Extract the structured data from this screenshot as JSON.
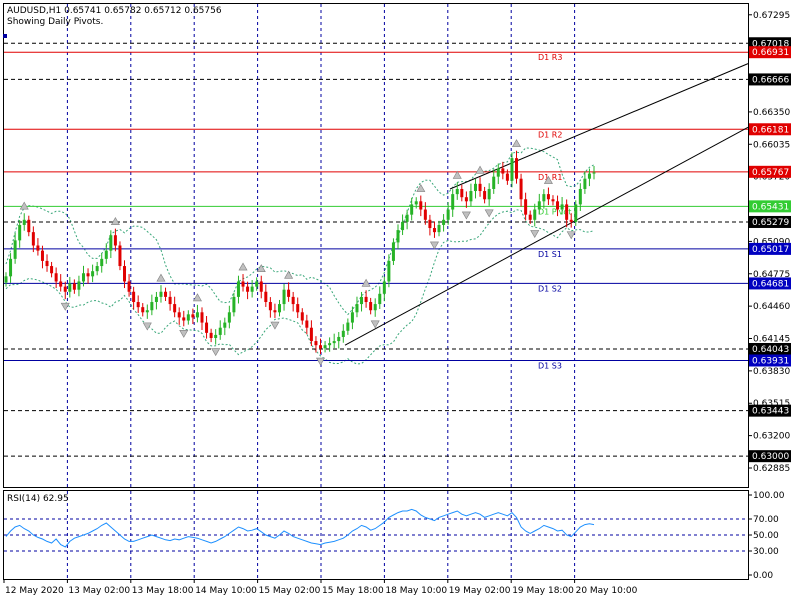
{
  "header": {
    "symbol_line": "AUDUSD,H1  0.65741 0.65782 0.65712 0.65756",
    "pivots_note": "Showing Daily Pivots."
  },
  "colors": {
    "bull": "#27b327",
    "bear": "#e00000",
    "pivot_resist": "#e00000",
    "pivot_support": "#0000a0",
    "pivot": "#33cc33",
    "bands": "#3aa77a",
    "rsi_line": "#1e90ff",
    "grid": "#0000a0",
    "axis_text": "#000000"
  },
  "price_axis": {
    "ticks": [
      "0.67295",
      "0.66350",
      "0.66035",
      "0.65720",
      "0.65405",
      "0.65090",
      "0.64775",
      "0.64460",
      "0.64145",
      "0.63830",
      "0.63515",
      "0.63200",
      "0.62885"
    ]
  },
  "price_labels": [
    {
      "text": "0.67018",
      "price": 0.67018,
      "style": "black"
    },
    {
      "text": "0.66931",
      "price": 0.66931,
      "style": "red"
    },
    {
      "text": "0.66666",
      "price": 0.66666,
      "style": "black"
    },
    {
      "text": "0.66181",
      "price": 0.66181,
      "style": "red"
    },
    {
      "text": "0.65767",
      "price": 0.65767,
      "style": "red"
    },
    {
      "text": "0.65431",
      "price": 0.65431,
      "style": "green"
    },
    {
      "text": "0.65279",
      "price": 0.65279,
      "style": "black"
    },
    {
      "text": "0.65017",
      "price": 0.65017,
      "style": "blue"
    },
    {
      "text": "0.64681",
      "price": 0.64681,
      "style": "blue"
    },
    {
      "text": "0.64043",
      "price": 0.64043,
      "style": "black"
    },
    {
      "text": "0.63931",
      "price": 0.63931,
      "style": "blue"
    },
    {
      "text": "0.63443",
      "price": 0.63443,
      "style": "black"
    },
    {
      "text": "0.63000",
      "price": 0.63,
      "style": "black"
    }
  ],
  "pivot_lines": [
    {
      "label": "D1 R3",
      "price": 0.66931,
      "kind": "resist"
    },
    {
      "label": "D1 R2",
      "price": 0.66181,
      "kind": "resist"
    },
    {
      "label": "D1 R1",
      "price": 0.65767,
      "kind": "resist"
    },
    {
      "label": "D1 Pivot",
      "price": 0.65431,
      "kind": "pivot"
    },
    {
      "label": "D1 S1",
      "price": 0.65017,
      "kind": "support"
    },
    {
      "label": "D1 S2",
      "price": 0.64681,
      "kind": "support"
    },
    {
      "label": "D1 S3",
      "price": 0.63931,
      "kind": "support"
    }
  ],
  "dashed_levels": [
    0.67018,
    0.66666,
    0.65279,
    0.64043,
    0.63443,
    0.63
  ],
  "rsi": {
    "label": "RSI(14) 62.95",
    "ticks": [
      "100.00",
      "70.00",
      "50.00",
      "30.00",
      "0.00"
    ]
  },
  "time_axis": {
    "labels": [
      "12 May 2020",
      "13 May 02:00",
      "13 May 18:00",
      "14 May 10:00",
      "15 May 02:00",
      "15 May 18:00",
      "18 May 10:00",
      "19 May 02:00",
      "19 May 18:00",
      "20 May 10:00"
    ]
  },
  "chart_data": {
    "type": "candlestick",
    "symbol": "AUDUSD",
    "timeframe": "H1",
    "ohlc_last": {
      "open": 0.65741,
      "high": 0.65782,
      "low": 0.65712,
      "close": 0.65756
    },
    "y_range": [
      0.627,
      0.674
    ],
    "closes": [
      0.6475,
      0.6492,
      0.651,
      0.6525,
      0.653,
      0.6518,
      0.6505,
      0.65,
      0.649,
      0.6485,
      0.6478,
      0.647,
      0.6465,
      0.646,
      0.6468,
      0.6462,
      0.647,
      0.6478,
      0.6475,
      0.648,
      0.6485,
      0.6492,
      0.65,
      0.6515,
      0.6505,
      0.6485,
      0.647,
      0.646,
      0.645,
      0.6445,
      0.644,
      0.6442,
      0.645,
      0.6455,
      0.646,
      0.6455,
      0.6448,
      0.644,
      0.6435,
      0.6432,
      0.6438,
      0.6435,
      0.644,
      0.643,
      0.642,
      0.6415,
      0.6418,
      0.6425,
      0.643,
      0.644,
      0.6455,
      0.647,
      0.6465,
      0.646,
      0.6465,
      0.647,
      0.646,
      0.645,
      0.6442,
      0.644,
      0.6448,
      0.6462,
      0.6455,
      0.6448,
      0.644,
      0.6432,
      0.6425,
      0.6412,
      0.6408,
      0.6405,
      0.6408,
      0.641,
      0.6412,
      0.6416,
      0.6422,
      0.643,
      0.644,
      0.6448,
      0.6455,
      0.645,
      0.6442,
      0.6448,
      0.6458,
      0.647,
      0.649,
      0.6508,
      0.652,
      0.6528,
      0.6535,
      0.6545,
      0.6548,
      0.654,
      0.653,
      0.6522,
      0.6518,
      0.6525,
      0.653,
      0.654,
      0.6555,
      0.656,
      0.6552,
      0.6548,
      0.6558,
      0.6565,
      0.6558,
      0.655,
      0.656,
      0.6572,
      0.658,
      0.6575,
      0.6568,
      0.659,
      0.657,
      0.655,
      0.6535,
      0.653,
      0.654,
      0.6548,
      0.6555,
      0.655,
      0.6548,
      0.654,
      0.6545,
      0.653,
      0.6528,
      0.6545,
      0.656,
      0.657,
      0.6575,
      0.6576
    ],
    "rsi_range": [
      0,
      100
    ],
    "rsi_values": [
      48,
      55,
      60,
      62,
      58,
      55,
      50,
      47,
      45,
      42,
      40,
      45,
      38,
      35,
      42,
      46,
      48,
      50,
      52,
      55,
      58,
      62,
      65,
      60,
      55,
      50,
      45,
      42,
      42,
      44,
      46,
      48,
      50,
      48,
      46,
      44,
      43,
      45,
      44,
      46,
      48,
      47,
      46,
      44,
      42,
      40,
      42,
      45,
      48,
      52,
      56,
      60,
      58,
      55,
      56,
      58,
      54,
      50,
      48,
      46,
      50,
      55,
      52,
      48,
      46,
      44,
      42,
      40,
      39,
      38,
      40,
      41,
      42,
      44,
      46,
      50,
      55,
      58,
      62,
      60,
      56,
      58,
      62,
      66,
      72,
      75,
      78,
      80,
      80,
      82,
      80,
      75,
      72,
      70,
      68,
      72,
      74,
      76,
      78,
      80,
      76,
      74,
      76,
      78,
      76,
      72,
      74,
      76,
      78,
      76,
      74,
      78,
      72,
      60,
      55,
      52,
      55,
      58,
      62,
      60,
      58,
      55,
      56,
      50,
      48,
      54,
      60,
      63,
      64,
      63
    ],
    "pivots": {
      "R3": 0.66931,
      "R2": 0.66181,
      "R1": 0.65767,
      "Pivot": 0.65431,
      "S1": 0.65017,
      "S2": 0.64681,
      "S3": 0.63931
    }
  }
}
